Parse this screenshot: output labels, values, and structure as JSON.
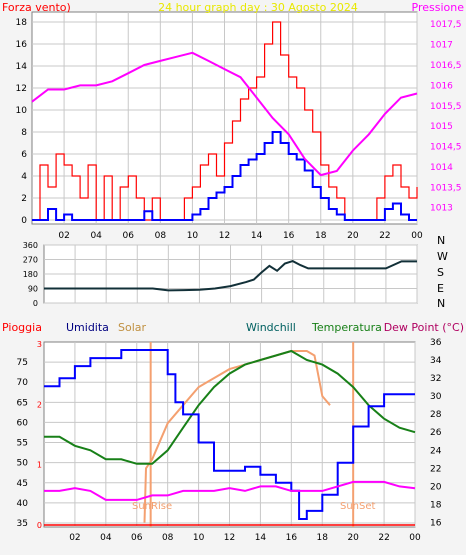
{
  "colors": {
    "wind": "#ff0000",
    "gust_avg": "#0000ff",
    "pressure": "#ff00ff",
    "direction": "#123038",
    "rain": "#ff0000",
    "humidity": "#0000ff",
    "solar": "#f4a070",
    "dewpoint": "#ff00ff",
    "temperature": "#188018",
    "sun_marker": "#f4a070",
    "title": "#e8e800",
    "grid": "#c8c8c8"
  },
  "x_ticks": [
    "02",
    "04",
    "06",
    "08",
    "10",
    "12",
    "14",
    "16",
    "18",
    "20",
    "22",
    "00"
  ],
  "panel1": {
    "legend_left": "Forza vento)",
    "title": "24 hour graph day : 30 Agosto 2024",
    "legend_right": "Pressione",
    "y_ticks": [
      "0",
      "2",
      "4",
      "6",
      "8",
      "10",
      "12",
      "14",
      "16",
      "18"
    ],
    "y_right_ticks": [
      "1013",
      "1013,5",
      "1014",
      "1014,5",
      "1015",
      "1015,5",
      "1016",
      "1016,5",
      "1017",
      "1017,5"
    ]
  },
  "panel2": {
    "y_ticks": [
      "0",
      "90",
      "180",
      "270",
      "360"
    ],
    "compass": [
      "N",
      "W",
      "S",
      "E",
      "N"
    ]
  },
  "panel3": {
    "legend": {
      "rain": "Pioggia",
      "humidity": "Umidita",
      "solar": "Solar",
      "windchill": "Windchill",
      "temperature": "Temperatura",
      "dewpoint": "Dew Point (°C)"
    },
    "y_left_rain": [
      "0",
      "1",
      "2",
      "3"
    ],
    "y_left_hum": [
      "35",
      "40",
      "45",
      "50",
      "55",
      "60",
      "65",
      "70",
      "75"
    ],
    "y_right_temp": [
      "16",
      "18",
      "20",
      "22",
      "24",
      "26",
      "28",
      "30",
      "32",
      "34",
      "36"
    ],
    "sunrise_label": "SunRise",
    "sunset_label": "SunSet"
  },
  "chart_data": [
    {
      "type": "line",
      "title": "24 hour graph day : 30 Agosto 2024",
      "x_unit": "hours",
      "ylim": [
        0,
        18
      ],
      "y2lim": [
        1012.6,
        1017.8
      ],
      "series": [
        {
          "name": "Forza vento)",
          "axis": "left",
          "style": "gust",
          "x": [
            0,
            0.5,
            1,
            1.5,
            2,
            2.5,
            3,
            3.5,
            4,
            4.5,
            5,
            5.5,
            6,
            6.5,
            7,
            7.5,
            8,
            8.5,
            9,
            9.5,
            10,
            10.5,
            11,
            11.5,
            12,
            12.5,
            13,
            13.5,
            14,
            14.5,
            15,
            15.5,
            16,
            16.5,
            17,
            17.5,
            18,
            18.5,
            19,
            19.5,
            20,
            20.5,
            21,
            21.5,
            22,
            22.5,
            23,
            23.5,
            24
          ],
          "values": [
            0,
            5,
            3,
            6,
            5,
            4,
            2,
            5,
            0,
            4,
            0,
            3,
            4,
            2,
            0,
            2,
            0,
            0,
            0,
            2,
            3,
            5,
            6,
            4,
            7,
            9,
            11,
            12,
            13,
            16,
            18,
            15,
            13,
            12,
            10,
            8,
            5,
            3,
            2,
            0,
            0,
            0,
            0,
            2,
            4,
            5,
            3,
            2,
            3
          ]
        },
        {
          "name": "",
          "axis": "left",
          "style": "avg",
          "x": [
            0,
            0.5,
            1,
            1.5,
            2,
            2.5,
            3,
            3.5,
            4,
            4.5,
            5,
            5.5,
            6,
            6.5,
            7,
            7.5,
            8,
            8.5,
            9,
            9.5,
            10,
            10.5,
            11,
            11.5,
            12,
            12.5,
            13,
            13.5,
            14,
            14.5,
            15,
            15.5,
            16,
            16.5,
            17,
            17.5,
            18,
            18.5,
            19,
            19.5,
            20,
            20.5,
            21,
            21.5,
            22,
            22.5,
            23,
            23.5,
            24
          ],
          "values": [
            0,
            0,
            1,
            0,
            0.5,
            0,
            0,
            0,
            0,
            0,
            0,
            0,
            0,
            0,
            0.8,
            0,
            0,
            0,
            0,
            0,
            0.5,
            1,
            2,
            2.5,
            3,
            4,
            5,
            5.5,
            6,
            7,
            8,
            7,
            6,
            5.5,
            4.5,
            3,
            2,
            1,
            0.5,
            0,
            0,
            0,
            0,
            0,
            1,
            1.5,
            0.5,
            0,
            0
          ]
        },
        {
          "name": "Pressione",
          "axis": "right",
          "style": "pressure",
          "x": [
            0,
            1,
            2,
            3,
            4,
            5,
            6,
            7,
            8,
            9,
            10,
            11,
            12,
            13,
            14,
            15,
            16,
            17,
            18,
            19,
            20,
            21,
            22,
            23,
            24
          ],
          "values": [
            1015.6,
            1015.9,
            1015.9,
            1016.0,
            1016.0,
            1016.1,
            1016.3,
            1016.5,
            1016.6,
            1016.7,
            1016.8,
            1016.6,
            1016.4,
            1016.2,
            1015.7,
            1015.2,
            1014.8,
            1014.2,
            1013.8,
            1013.9,
            1014.4,
            1014.8,
            1015.3,
            1015.7,
            1015.8
          ]
        }
      ]
    },
    {
      "type": "line",
      "title": "",
      "x_unit": "hours",
      "ylim": [
        0,
        360
      ],
      "series": [
        {
          "name": "",
          "x": [
            0,
            1,
            2,
            3,
            4,
            5,
            6,
            7,
            8,
            9,
            10,
            11,
            12,
            13,
            13.5,
            14,
            14.5,
            15,
            15.5,
            16,
            16.5,
            17,
            18,
            19,
            20,
            21,
            22,
            23,
            24
          ],
          "values": [
            90,
            90,
            90,
            90,
            90,
            90,
            90,
            90,
            78,
            80,
            82,
            90,
            105,
            130,
            145,
            190,
            230,
            200,
            245,
            260,
            235,
            215,
            215,
            215,
            215,
            215,
            215,
            258,
            258
          ]
        }
      ]
    },
    {
      "type": "line",
      "title": "",
      "x_unit": "hours",
      "series": [
        {
          "name": "Pioggia",
          "axis": "rain",
          "ylim": [
            0,
            3
          ],
          "x": [
            0,
            24
          ],
          "values": [
            0,
            0
          ]
        },
        {
          "name": "Umidita",
          "axis": "humidity",
          "ylim": [
            34,
            80
          ],
          "x": [
            0,
            1,
            2,
            3,
            4,
            5,
            6,
            7,
            8,
            8.5,
            9,
            10,
            11,
            12,
            13,
            14,
            15,
            16,
            16.5,
            17,
            18,
            19,
            20,
            21,
            22,
            23,
            24
          ],
          "values": [
            69,
            71,
            74,
            76,
            76,
            78,
            78,
            78,
            72,
            65,
            62,
            55,
            48,
            48,
            49,
            47,
            45,
            43,
            36,
            38,
            42,
            50,
            59,
            64,
            67,
            67,
            67
          ]
        },
        {
          "name": "Solar",
          "axis": "temperature",
          "ylim": [
            15.5,
            36
          ],
          "x": [
            0,
            6.5,
            6.6,
            7,
            7.5,
            8,
            9,
            10,
            11,
            12,
            13,
            14,
            15,
            16,
            17,
            17.5,
            18,
            18.5,
            19,
            20,
            24
          ],
          "values": [
            null,
            16,
            22,
            23,
            25,
            27,
            29,
            31,
            32,
            33,
            33.5,
            34,
            34.5,
            35,
            35,
            34.5,
            30,
            29,
            null,
            null,
            null
          ]
        },
        {
          "name": "Temperatura",
          "axis": "temperature",
          "ylim": [
            15.5,
            36
          ],
          "x": [
            0,
            1,
            2,
            3,
            4,
            5,
            6,
            7,
            8,
            9,
            10,
            11,
            12,
            13,
            14,
            15,
            16,
            17,
            18,
            19,
            20,
            21,
            22,
            23,
            24
          ],
          "values": [
            25.5,
            25.5,
            24.5,
            24,
            23,
            23,
            22.5,
            22.5,
            24,
            26.5,
            29,
            31,
            32.5,
            33.5,
            34,
            34.5,
            35,
            34,
            33.5,
            32.5,
            31,
            29,
            27.5,
            26.5,
            26
          ]
        },
        {
          "name": "Dew Point (°C)",
          "axis": "temperature",
          "ylim": [
            15.5,
            36
          ],
          "x": [
            0,
            1,
            2,
            3,
            4,
            5,
            6,
            7,
            8,
            9,
            10,
            11,
            12,
            13,
            14,
            15,
            16,
            17,
            18,
            19,
            20,
            21,
            22,
            23,
            24
          ],
          "values": [
            19.5,
            19.5,
            19.8,
            19.5,
            18.5,
            18.5,
            18.5,
            19,
            19,
            19.5,
            19.5,
            19.5,
            19.8,
            19.5,
            20,
            20,
            19.5,
            19.5,
            19.5,
            20,
            20.5,
            20.5,
            20.5,
            20,
            19.8
          ]
        }
      ],
      "markers": {
        "sunrise_hour": 6.9,
        "sunset_hour": 20.0
      }
    }
  ]
}
